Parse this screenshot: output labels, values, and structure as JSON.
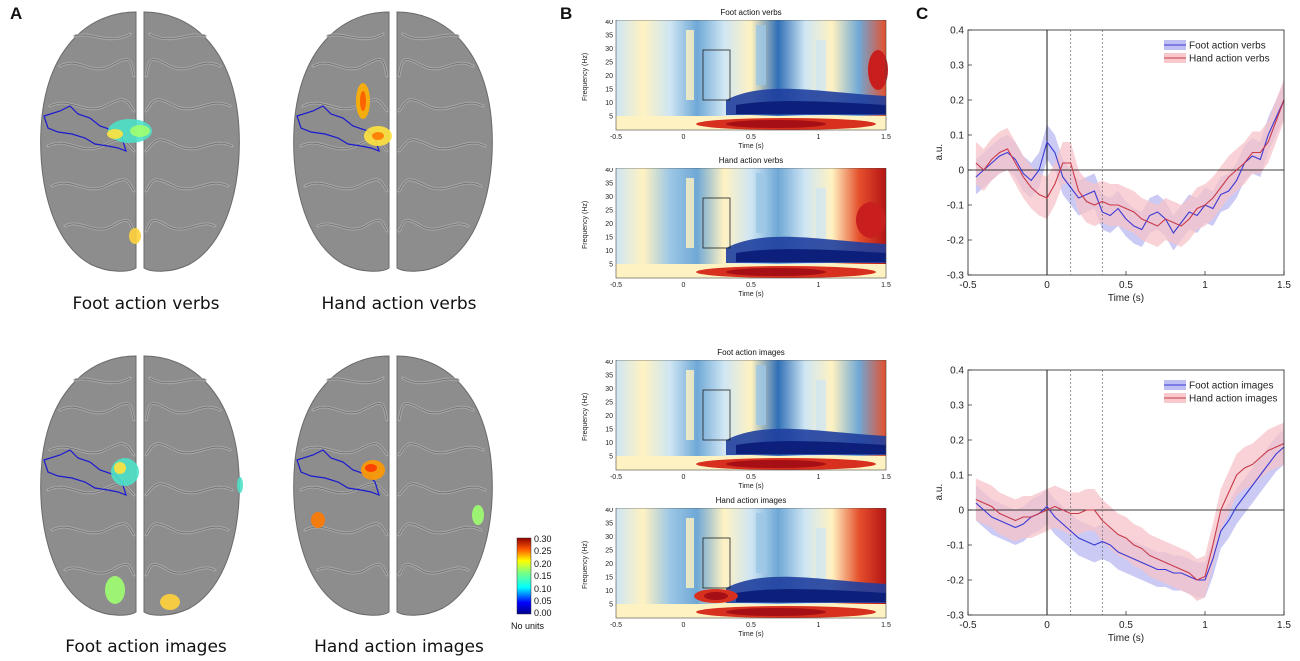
{
  "panels": {
    "a": "A",
    "b": "B",
    "c": "C"
  },
  "brain": {
    "captions": [
      "Foot action verbs",
      "Hand action verbs",
      "Foot action images",
      "Hand action images"
    ],
    "colorbar": {
      "ticks": [
        "0.30",
        "0.25",
        "0.20",
        "0.15",
        "0.10",
        "0.05",
        "0.00"
      ],
      "unit": "No units"
    }
  },
  "tf": {
    "titles": [
      "Foot action verbs",
      "Hand action verbs",
      "Foot action images",
      "Hand action images"
    ],
    "ylabel": "Frequency (Hz)",
    "xlabel": "Time (s)",
    "yticks": [
      "40",
      "35",
      "30",
      "25",
      "20",
      "15",
      "10",
      "5"
    ],
    "xticks": [
      "-0.5",
      "0",
      "0.5",
      "1",
      "1.5"
    ]
  },
  "chart_data": [
    {
      "type": "line",
      "xlabel": "Time (s)",
      "ylabel": "a.u.",
      "xlim": [
        -0.5,
        1.5
      ],
      "ylim": [
        -0.3,
        0.4
      ],
      "xticks": [
        "-0.5",
        "0",
        "0.5",
        "1",
        "1.5"
      ],
      "yticks": [
        "0.4",
        "0.3",
        "0.2",
        "0.1",
        "0",
        "-0.1",
        "-0.2",
        "-0.3"
      ],
      "vlines": [
        0,
        0.15,
        0.35
      ],
      "legend_position": "top-right",
      "x": [
        -0.45,
        -0.4,
        -0.35,
        -0.3,
        -0.25,
        -0.2,
        -0.15,
        -0.1,
        -0.05,
        0,
        0.05,
        0.1,
        0.15,
        0.2,
        0.25,
        0.3,
        0.35,
        0.4,
        0.45,
        0.5,
        0.55,
        0.6,
        0.65,
        0.7,
        0.75,
        0.8,
        0.85,
        0.9,
        0.95,
        1.0,
        1.05,
        1.1,
        1.15,
        1.2,
        1.25,
        1.3,
        1.35,
        1.4,
        1.45,
        1.5
      ],
      "series": [
        {
          "name": "Foot action verbs",
          "color": "#3a3ad6",
          "band": "#b8b8f2",
          "values": [
            -0.02,
            0.0,
            0.02,
            0.04,
            0.05,
            0.03,
            -0.01,
            -0.03,
            0.0,
            0.08,
            0.05,
            -0.02,
            -0.05,
            -0.08,
            -0.07,
            -0.06,
            -0.12,
            -0.13,
            -0.11,
            -0.14,
            -0.16,
            -0.17,
            -0.13,
            -0.12,
            -0.14,
            -0.18,
            -0.15,
            -0.12,
            -0.13,
            -0.1,
            -0.11,
            -0.07,
            -0.06,
            -0.03,
            0.02,
            0.04,
            0.03,
            0.1,
            0.15,
            0.2
          ],
          "spread": 0.05
        },
        {
          "name": "Hand action verbs",
          "color": "#c83a4a",
          "band": "#f6c3c8",
          "values": [
            0.02,
            0.0,
            0.03,
            0.05,
            0.06,
            0.02,
            -0.02,
            -0.05,
            -0.07,
            -0.08,
            -0.04,
            0.02,
            0.02,
            -0.06,
            -0.09,
            -0.1,
            -0.09,
            -0.1,
            -0.1,
            -0.11,
            -0.12,
            -0.14,
            -0.15,
            -0.16,
            -0.14,
            -0.15,
            -0.16,
            -0.14,
            -0.11,
            -0.1,
            -0.08,
            -0.05,
            -0.02,
            0.0,
            0.02,
            0.05,
            0.05,
            0.08,
            0.14,
            0.2
          ],
          "spread": 0.06
        }
      ]
    },
    {
      "type": "line",
      "xlabel": "Time (s)",
      "ylabel": "a.u.",
      "xlim": [
        -0.5,
        1.5
      ],
      "ylim": [
        -0.3,
        0.4
      ],
      "xticks": [
        "-0.5",
        "0",
        "0.5",
        "1",
        "1.5"
      ],
      "yticks": [
        "0.4",
        "0.3",
        "0.2",
        "0.1",
        "0",
        "-0.1",
        "-0.2",
        "-0.3"
      ],
      "vlines": [
        0,
        0.15,
        0.35
      ],
      "legend_position": "top-right",
      "x": [
        -0.45,
        -0.4,
        -0.35,
        -0.3,
        -0.25,
        -0.2,
        -0.15,
        -0.1,
        -0.05,
        0,
        0.05,
        0.1,
        0.15,
        0.2,
        0.25,
        0.3,
        0.35,
        0.4,
        0.45,
        0.5,
        0.55,
        0.6,
        0.65,
        0.7,
        0.75,
        0.8,
        0.85,
        0.9,
        0.95,
        1.0,
        1.05,
        1.1,
        1.15,
        1.2,
        1.25,
        1.3,
        1.35,
        1.4,
        1.45,
        1.5
      ],
      "series": [
        {
          "name": "Foot action images",
          "color": "#3a3ad6",
          "band": "#b8b8f2",
          "values": [
            0.02,
            0.0,
            -0.02,
            -0.03,
            -0.04,
            -0.05,
            -0.04,
            -0.02,
            -0.01,
            0.01,
            -0.02,
            -0.04,
            -0.06,
            -0.08,
            -0.09,
            -0.1,
            -0.09,
            -0.1,
            -0.12,
            -0.13,
            -0.14,
            -0.15,
            -0.16,
            -0.17,
            -0.17,
            -0.18,
            -0.18,
            -0.19,
            -0.2,
            -0.2,
            -0.14,
            -0.06,
            -0.03,
            0.01,
            0.04,
            0.07,
            0.1,
            0.13,
            0.16,
            0.18
          ],
          "spread": 0.05
        },
        {
          "name": "Hand action images",
          "color": "#c83a4a",
          "band": "#f6c3c8",
          "values": [
            0.03,
            0.02,
            0.01,
            -0.01,
            -0.02,
            -0.03,
            -0.02,
            -0.02,
            -0.01,
            0.0,
            0.01,
            0.0,
            -0.01,
            -0.01,
            0.0,
            0.0,
            -0.03,
            -0.05,
            -0.07,
            -0.08,
            -0.1,
            -0.11,
            -0.13,
            -0.14,
            -0.15,
            -0.16,
            -0.17,
            -0.18,
            -0.2,
            -0.19,
            -0.1,
            0.0,
            0.05,
            0.1,
            0.12,
            0.13,
            0.15,
            0.17,
            0.18,
            0.19
          ],
          "spread": 0.06
        }
      ]
    }
  ]
}
